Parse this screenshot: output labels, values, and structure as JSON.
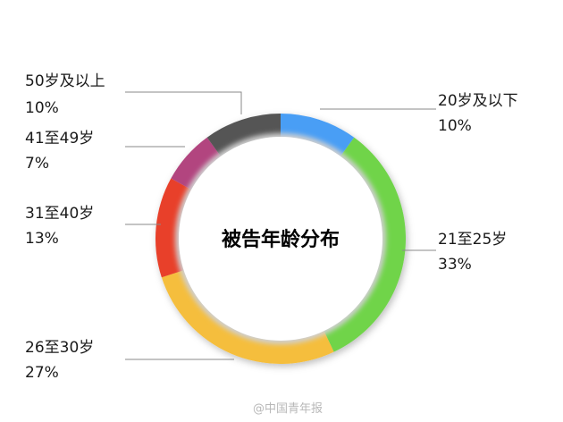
{
  "chart_data": {
    "type": "pie",
    "title": "被告年龄分布",
    "categories": [
      "20岁及以下",
      "21至25岁",
      "26至30岁",
      "31至40岁",
      "41至49岁",
      "50岁及以上"
    ],
    "values": [
      10,
      33,
      27,
      13,
      7,
      10
    ],
    "value_labels": [
      "10%",
      "33%",
      "27%",
      "13%",
      "7%",
      "10%"
    ],
    "colors": [
      "#4a9ef5",
      "#6fd44a",
      "#f5be3c",
      "#e8402a",
      "#b2457f",
      "#545454"
    ],
    "legend": "none"
  },
  "watermark": {
    "text": "@中国青年报"
  }
}
